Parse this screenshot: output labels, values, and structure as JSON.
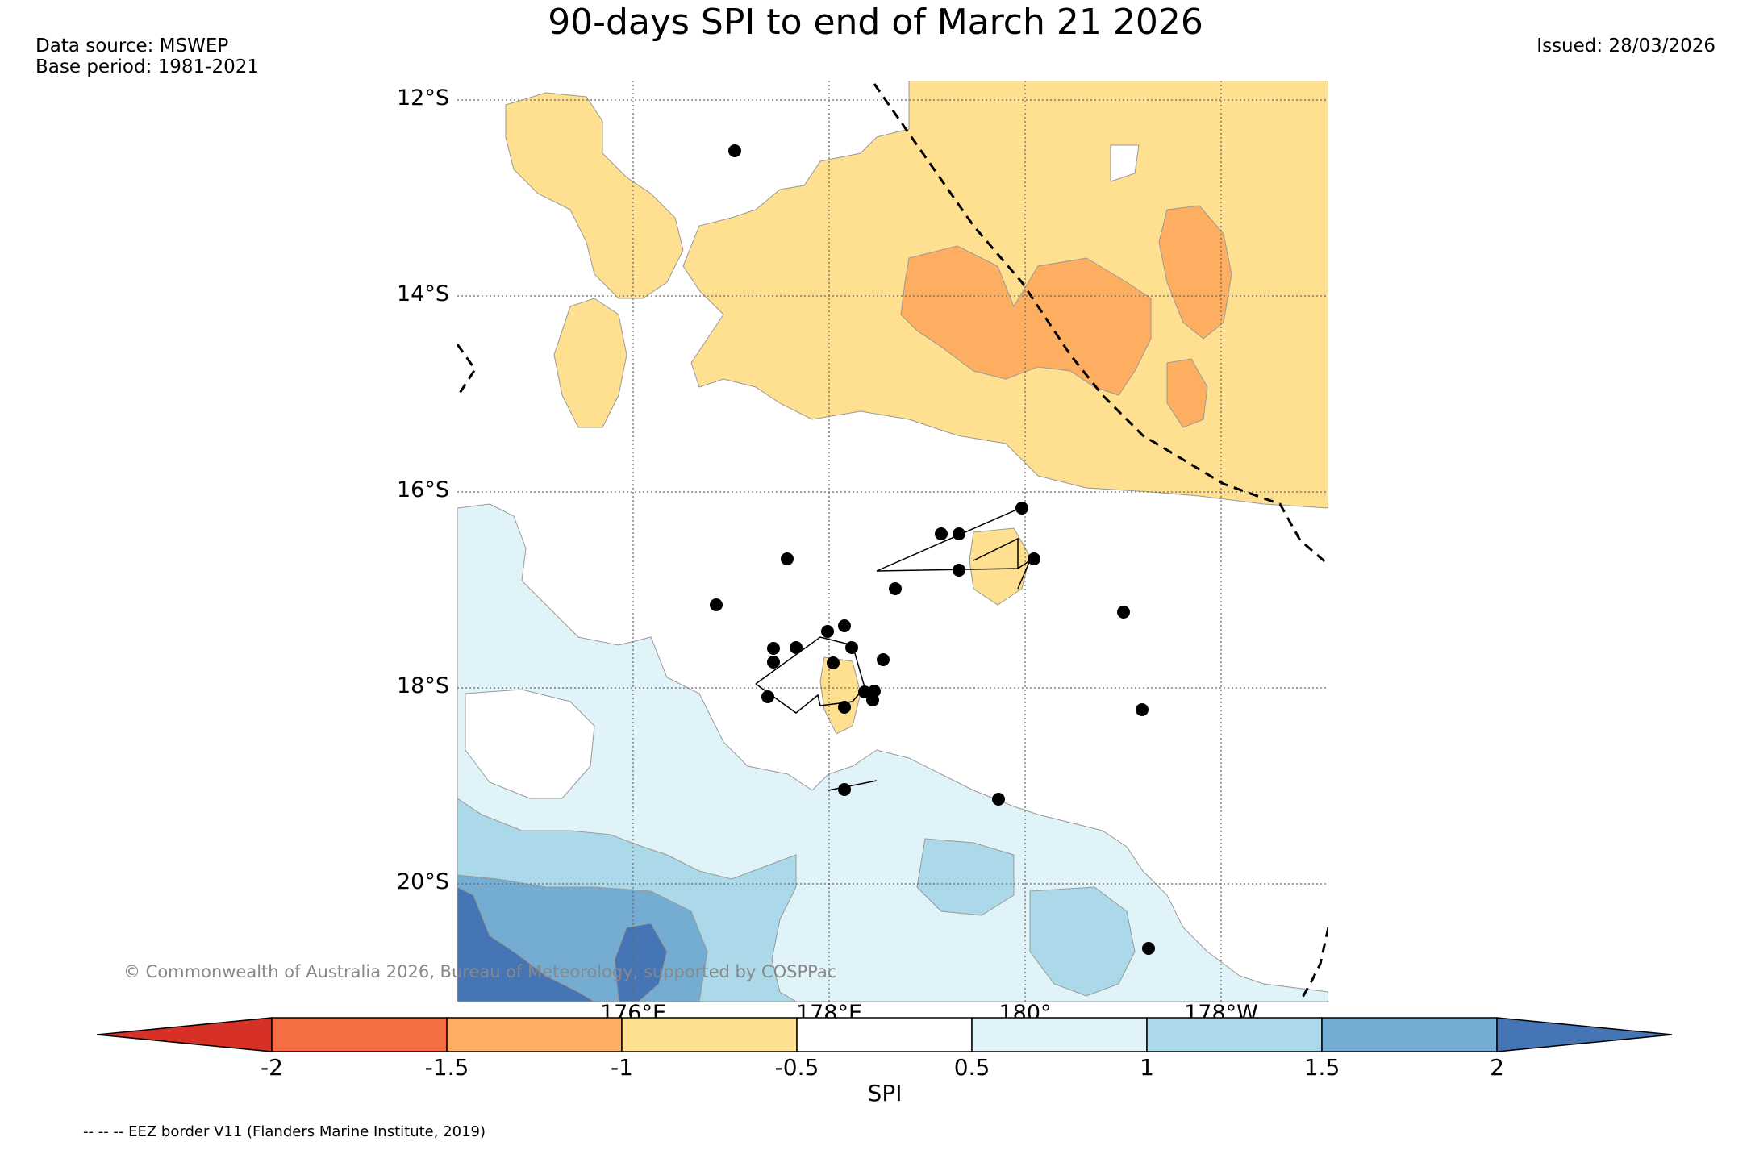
{
  "title": "90-days SPI to end of March 21 2026",
  "meta": {
    "data_source": "Data source: MSWEP",
    "base_period": "Base period: 1981-2021",
    "issued": "Issued: 28/03/2026"
  },
  "latitudes": [
    "12°S",
    "14°S",
    "16°S",
    "18°S",
    "20°S"
  ],
  "longitudes": [
    "176°E",
    "178°E",
    "180°",
    "178°W"
  ],
  "copyright": "© Commonwealth of Australia 2026, Bureau of Meteorology, supported by COSPPac",
  "colorbar": {
    "title": "SPI",
    "tick_labels": [
      "-2",
      "-1.5",
      "-1",
      "-0.5",
      "0.5",
      "1",
      "1.5",
      "2"
    ],
    "colors": {
      "lt_minus_2": "#d73027",
      "m2_m1_5": "#f46d43",
      "m1_5_m1": "#fdae61",
      "m1_m0_5": "#fee090",
      "m0_5_0_5": "#ffffff",
      "p0_5_p1": "#e0f3f8",
      "p1_p1_5": "#abd9e9",
      "p1_5_p2": "#74add1",
      "gt_2": "#4575b4"
    }
  },
  "eez_note": "-- -- -- EEZ border V11 (Flanders Marine Institute, 2019)"
}
